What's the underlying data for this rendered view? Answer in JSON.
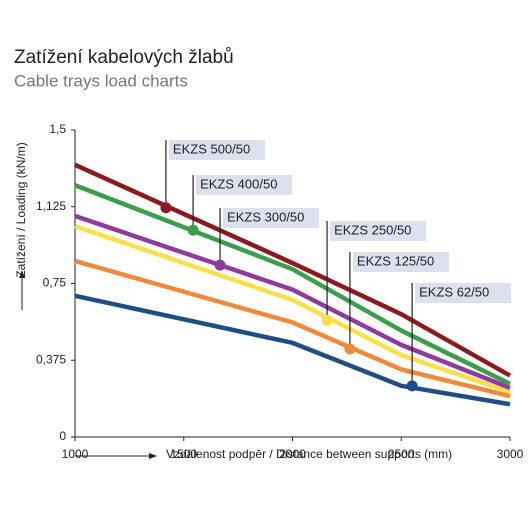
{
  "chart_data": {
    "type": "line",
    "title": "Zatížení kabelových žlabů",
    "subtitle": "Cable trays load charts",
    "y_label": "Zatížení / Loading (kN/m)",
    "x_label": "Vzdálenost podpěr / Distance between supports (mm)",
    "x": [
      1000,
      2000,
      2500,
      3000
    ],
    "xlim": [
      1000,
      3000
    ],
    "xticks": [
      1000,
      1500,
      2000,
      2500,
      3000
    ],
    "ylim": [
      0,
      1.5
    ],
    "yticks": [
      0,
      {
        "value": 0.375,
        "label": "0,375"
      },
      {
        "value": 0.75,
        "label": "0,75"
      },
      {
        "value": 1.125,
        "label": "1,125"
      },
      {
        "value": 1.5,
        "label": "1,5"
      }
    ],
    "grid": false,
    "series": [
      {
        "name": "EKZS 500/50",
        "color": "#8b1a1f",
        "values": [
          1.33,
          0.85,
          0.6,
          0.3
        ],
        "marker_x": 1418,
        "marker_y": 1.12
      },
      {
        "name": "EKZS 400/50",
        "color": "#3b9e4a",
        "values": [
          1.23,
          0.82,
          0.52,
          0.26
        ],
        "marker_x": 1543,
        "marker_y": 1.01
      },
      {
        "name": "EKZS 300/50",
        "color": "#8e3a9e",
        "values": [
          1.08,
          0.72,
          0.45,
          0.24
        ],
        "marker_x": 1667,
        "marker_y": 0.84
      },
      {
        "name": "EKZS 250/50",
        "color": "#f8e04c",
        "values": [
          1.03,
          0.67,
          0.4,
          0.22
        ],
        "marker_x": 2159,
        "marker_y": 0.57
      },
      {
        "name": "EKZS 125/50",
        "color": "#ee8a3a",
        "values": [
          0.86,
          0.56,
          0.33,
          0.2
        ],
        "marker_x": 2264,
        "marker_y": 0.43
      },
      {
        "name": "EKZS 62/50",
        "color": "#1f4e85",
        "values": [
          0.69,
          0.46,
          0.25,
          0.16
        ],
        "marker_x": 2550,
        "marker_y": 0.25
      }
    ]
  }
}
